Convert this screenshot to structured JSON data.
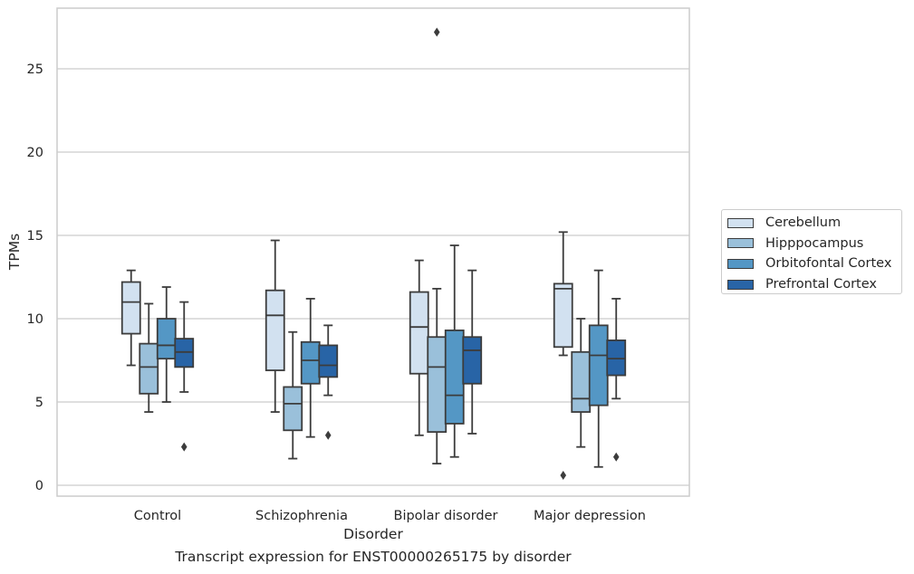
{
  "chart_data": {
    "type": "box",
    "caption": "Transcript expression for ENST00000265175 by disorder",
    "xlabel": "Disorder",
    "ylabel": "TPMs",
    "categories": [
      "Control",
      "Schizophrenia",
      "Bipolar disorder",
      "Major depression"
    ],
    "ylim": [
      -0.6,
      28.5
    ],
    "yticks": [
      0,
      5,
      10,
      15,
      20,
      25
    ],
    "grid": true,
    "legend_position": "right",
    "series": [
      {
        "name": "Cerebellum",
        "color": "#d2e1f0",
        "boxes": [
          {
            "whisker_low": 7.2,
            "q1": 9.1,
            "median": 11.0,
            "q3": 12.2,
            "whisker_high": 12.9,
            "outliers": []
          },
          {
            "whisker_low": 4.4,
            "q1": 6.9,
            "median": 10.2,
            "q3": 11.7,
            "whisker_high": 14.7,
            "outliers": []
          },
          {
            "whisker_low": 3.0,
            "q1": 6.7,
            "median": 9.5,
            "q3": 11.6,
            "whisker_high": 13.5,
            "outliers": []
          },
          {
            "whisker_low": 7.8,
            "q1": 8.3,
            "median": 11.8,
            "q3": 12.1,
            "whisker_high": 15.2,
            "outliers": [
              0.6
            ]
          }
        ]
      },
      {
        "name": "Hipppocampus",
        "color": "#9ac0da",
        "boxes": [
          {
            "whisker_low": 4.4,
            "q1": 5.5,
            "median": 7.1,
            "q3": 8.5,
            "whisker_high": 10.9,
            "outliers": []
          },
          {
            "whisker_low": 1.6,
            "q1": 3.3,
            "median": 4.9,
            "q3": 5.9,
            "whisker_high": 9.2,
            "outliers": []
          },
          {
            "whisker_low": 1.3,
            "q1": 3.2,
            "median": 7.1,
            "q3": 8.9,
            "whisker_high": 11.8,
            "outliers": [
              27.2
            ]
          },
          {
            "whisker_low": 2.3,
            "q1": 4.4,
            "median": 5.2,
            "q3": 8.0,
            "whisker_high": 10.0,
            "outliers": []
          }
        ]
      },
      {
        "name": "Orbitofontal Cortex",
        "color": "#5497c5",
        "boxes": [
          {
            "whisker_low": 5.0,
            "q1": 7.6,
            "median": 8.4,
            "q3": 10.0,
            "whisker_high": 11.9,
            "outliers": []
          },
          {
            "whisker_low": 2.9,
            "q1": 6.1,
            "median": 7.5,
            "q3": 8.6,
            "whisker_high": 11.2,
            "outliers": []
          },
          {
            "whisker_low": 1.7,
            "q1": 3.7,
            "median": 5.4,
            "q3": 9.3,
            "whisker_high": 14.4,
            "outliers": []
          },
          {
            "whisker_low": 1.1,
            "q1": 4.8,
            "median": 7.8,
            "q3": 9.6,
            "whisker_high": 12.9,
            "outliers": []
          }
        ]
      },
      {
        "name": "Prefrontal Cortex",
        "color": "#2864a6",
        "boxes": [
          {
            "whisker_low": 5.6,
            "q1": 7.1,
            "median": 8.0,
            "q3": 8.8,
            "whisker_high": 11.0,
            "outliers": [
              2.3
            ]
          },
          {
            "whisker_low": 5.4,
            "q1": 6.5,
            "median": 7.2,
            "q3": 8.4,
            "whisker_high": 9.6,
            "outliers": [
              3.0
            ]
          },
          {
            "whisker_low": 3.1,
            "q1": 6.1,
            "median": 8.1,
            "q3": 8.9,
            "whisker_high": 12.9,
            "outliers": []
          },
          {
            "whisker_low": 5.2,
            "q1": 6.6,
            "median": 7.6,
            "q3": 8.7,
            "whisker_high": 11.2,
            "outliers": [
              1.7
            ]
          }
        ]
      }
    ]
  }
}
